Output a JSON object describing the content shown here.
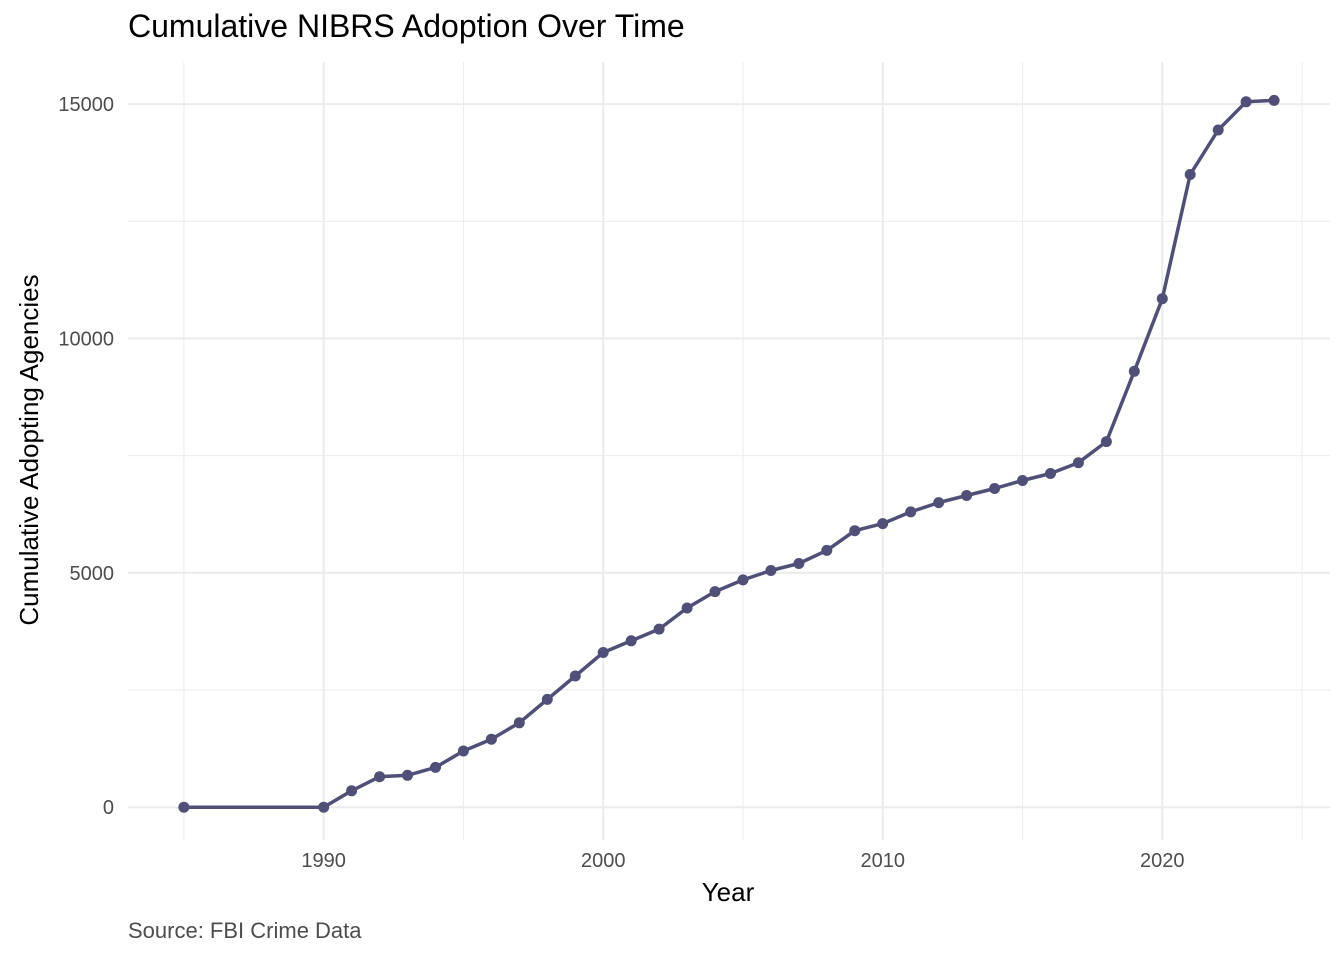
{
  "chart_data": {
    "type": "line",
    "title": "Cumulative NIBRS Adoption Over Time",
    "caption": "Source: FBI Crime Data",
    "xlabel": "Year",
    "ylabel": "Cumulative Adopting Agencies",
    "xlim": [
      1983,
      2026
    ],
    "ylim": [
      -700,
      15900
    ],
    "x_ticks": [
      1990,
      2000,
      2010,
      2020
    ],
    "x_minor_ticks": [
      1985,
      1995,
      2005,
      2015,
      2025
    ],
    "y_ticks": [
      0,
      5000,
      10000,
      15000
    ],
    "y_minor_ticks": [
      2500,
      7500,
      12500
    ],
    "grid": true,
    "legend": "none",
    "colors": {
      "line": "#4f4f78",
      "grid": "#ebebeb"
    },
    "series": [
      {
        "x": [
          1985,
          1990,
          1991,
          1992,
          1993,
          1994,
          1995,
          1996,
          1997,
          1998,
          1999,
          2000,
          2001,
          2002,
          2003,
          2004,
          2005,
          2006,
          2007,
          2008,
          2009,
          2010,
          2011,
          2012,
          2013,
          2014,
          2015,
          2016,
          2017,
          2018,
          2019,
          2020,
          2021,
          2022,
          2023,
          2024
        ],
        "values": [
          0,
          0,
          350,
          650,
          680,
          850,
          1200,
          1450,
          1800,
          2300,
          2800,
          3300,
          3550,
          3800,
          4250,
          4600,
          4850,
          5050,
          5200,
          5480,
          5900,
          6050,
          6300,
          6500,
          6650,
          6800,
          6970,
          7120,
          7350,
          7800,
          9300,
          10850,
          13500,
          14450,
          15050,
          15080
        ]
      }
    ]
  }
}
